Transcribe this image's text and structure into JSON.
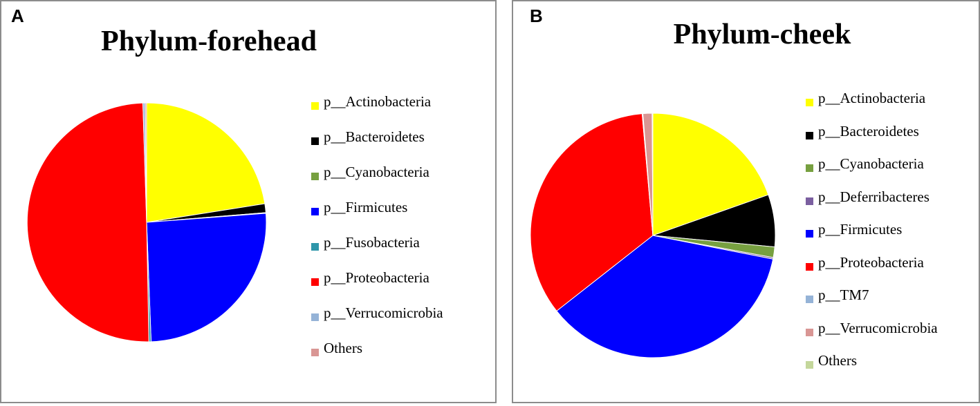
{
  "chart_data": [
    {
      "type": "pie",
      "panel_label": "A",
      "title": "Phylum-forehead",
      "legend_placement": "right",
      "slices": [
        {
          "label": "p__Actinobacteria",
          "value": 22.5,
          "color": "#ffff00"
        },
        {
          "label": "p__Bacteroidetes",
          "value": 1.2,
          "color": "#000000"
        },
        {
          "label": "p__Cyanobacteria",
          "value": 0.1,
          "color": "#77a040"
        },
        {
          "label": "p__Firmicutes",
          "value": 25.6,
          "color": "#0000ff"
        },
        {
          "label": "p__Fusobacteria",
          "value": 0.3,
          "color": "#2e96aa"
        },
        {
          "label": "p__Proteobacteria",
          "value": 49.8,
          "color": "#ff0000"
        },
        {
          "label": "p__Verrucomicrobia",
          "value": 0.3,
          "color": "#95b3d7"
        },
        {
          "label": "Others",
          "value": 0.2,
          "color": "#d99694"
        }
      ]
    },
    {
      "type": "pie",
      "panel_label": "B",
      "title": "Phylum-cheek",
      "legend_placement": "right",
      "slices": [
        {
          "label": "p__Actinobacteria",
          "value": 19.6,
          "color": "#ffff00"
        },
        {
          "label": "p__Bacteroidetes",
          "value": 6.9,
          "color": "#000000"
        },
        {
          "label": "p__Cyanobacteria",
          "value": 1.4,
          "color": "#77a040"
        },
        {
          "label": "p__Deferribacteres",
          "value": 0.2,
          "color": "#7b5fa0"
        },
        {
          "label": "p__Firmicutes",
          "value": 36.3,
          "color": "#0000ff"
        },
        {
          "label": "p__Proteobacteria",
          "value": 34.2,
          "color": "#ff0000"
        },
        {
          "label": "p__TM7",
          "value": 0.1,
          "color": "#95b3d7"
        },
        {
          "label": "p__Verrucomicrobia",
          "value": 1.2,
          "color": "#d99694"
        },
        {
          "label": "Others",
          "value": 0.1,
          "color": "#c4d79b"
        }
      ]
    }
  ]
}
